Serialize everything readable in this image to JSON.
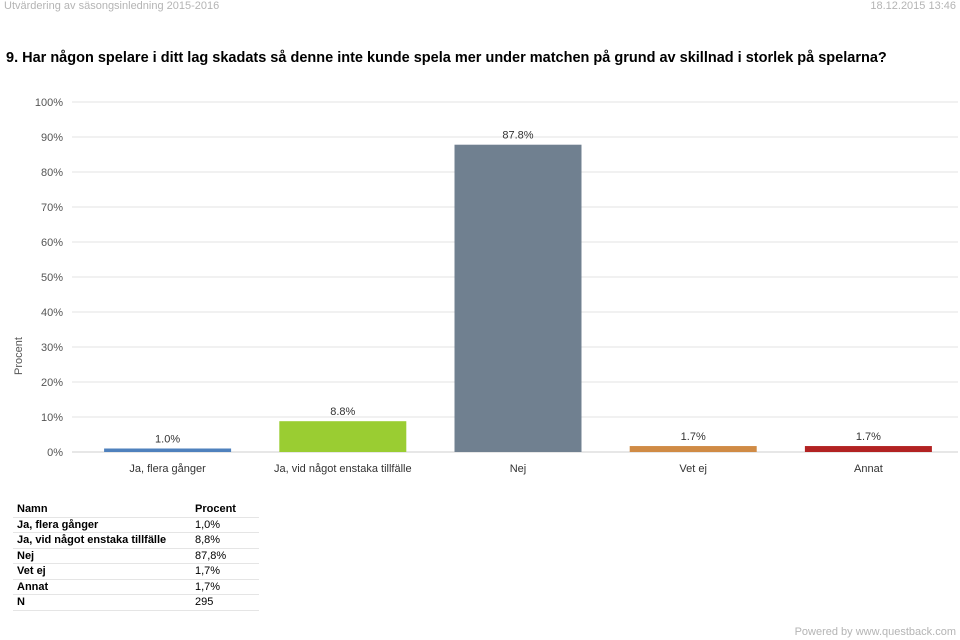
{
  "header": {
    "title": "Utvärdering av säsongsinledning 2015-2016",
    "date": "18.12.2015 13:46"
  },
  "question": "9. Har någon spelare i ditt lag skadats så denne inte kunde spela mer under matchen på grund av skillnad i storlek på spelarna?",
  "chart_data": {
    "type": "bar",
    "ylabel": "Procent",
    "ylim": [
      0,
      100
    ],
    "yticks": [
      "0%",
      "10%",
      "20%",
      "30%",
      "40%",
      "50%",
      "60%",
      "70%",
      "80%",
      "90%",
      "100%"
    ],
    "categories": [
      "Ja, flera gånger",
      "Ja, vid något enstaka tillfälle",
      "Nej",
      "Vet ej",
      "Annat"
    ],
    "values": [
      1.0,
      8.8,
      87.8,
      1.7,
      1.7
    ],
    "value_labels": [
      "1.0%",
      "8.8%",
      "87.8%",
      "1.7%",
      "1.7%"
    ],
    "colors": [
      "#4f81bd",
      "#9acd32",
      "#708090",
      "#d08b45",
      "#b22222"
    ],
    "grid": true
  },
  "table": {
    "headers": [
      "Namn",
      "Procent"
    ],
    "rows": [
      [
        "Ja, flera gånger",
        "1,0%"
      ],
      [
        "Ja, vid något enstaka tillfälle",
        "8,8%"
      ],
      [
        "Nej",
        "87,8%"
      ],
      [
        "Vet ej",
        "1,7%"
      ],
      [
        "Annat",
        "1,7%"
      ],
      [
        "N",
        "295"
      ]
    ]
  },
  "footer": "Powered by www.questback.com"
}
